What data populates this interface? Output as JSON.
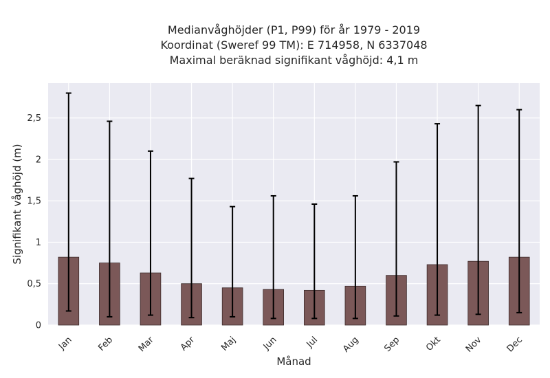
{
  "chart_data": {
    "type": "bar",
    "title_lines": [
      "Medianvåghöjder (P1, P99) för år 1979 - 2019",
      "Koordinat (Sweref 99 TM): E 714958, N 6337048",
      "Maximal beräknad signifikant våghöjd: 4,1 m"
    ],
    "xlabel": "Månad",
    "ylabel": "Signifikant våghöjd (m)",
    "categories": [
      "Jan",
      "Feb",
      "Mar",
      "Apr",
      "Maj",
      "Jun",
      "Jul",
      "Aug",
      "Sep",
      "Okt",
      "Nov",
      "Dec"
    ],
    "values": [
      0.82,
      0.75,
      0.63,
      0.5,
      0.45,
      0.43,
      0.42,
      0.47,
      0.6,
      0.73,
      0.77,
      0.82
    ],
    "p1": [
      0.17,
      0.1,
      0.12,
      0.09,
      0.1,
      0.08,
      0.08,
      0.08,
      0.11,
      0.12,
      0.13,
      0.15
    ],
    "p99": [
      2.8,
      2.46,
      2.1,
      1.77,
      1.43,
      1.56,
      1.46,
      1.56,
      1.97,
      2.43,
      2.65,
      2.6
    ],
    "ylim": [
      0,
      2.92
    ],
    "yticks": [
      0,
      0.5,
      1,
      1.5,
      2,
      2.5
    ],
    "ytick_labels": [
      "0",
      "0,5",
      "1",
      "1,5",
      "2",
      "2,5"
    ],
    "grid": true,
    "colors": {
      "bar": "#7b5858",
      "bar_edge": "#3b2a2a",
      "errorbar": "#000000",
      "plot_bg": "#eaeaf2",
      "grid": "#ffffff"
    }
  }
}
